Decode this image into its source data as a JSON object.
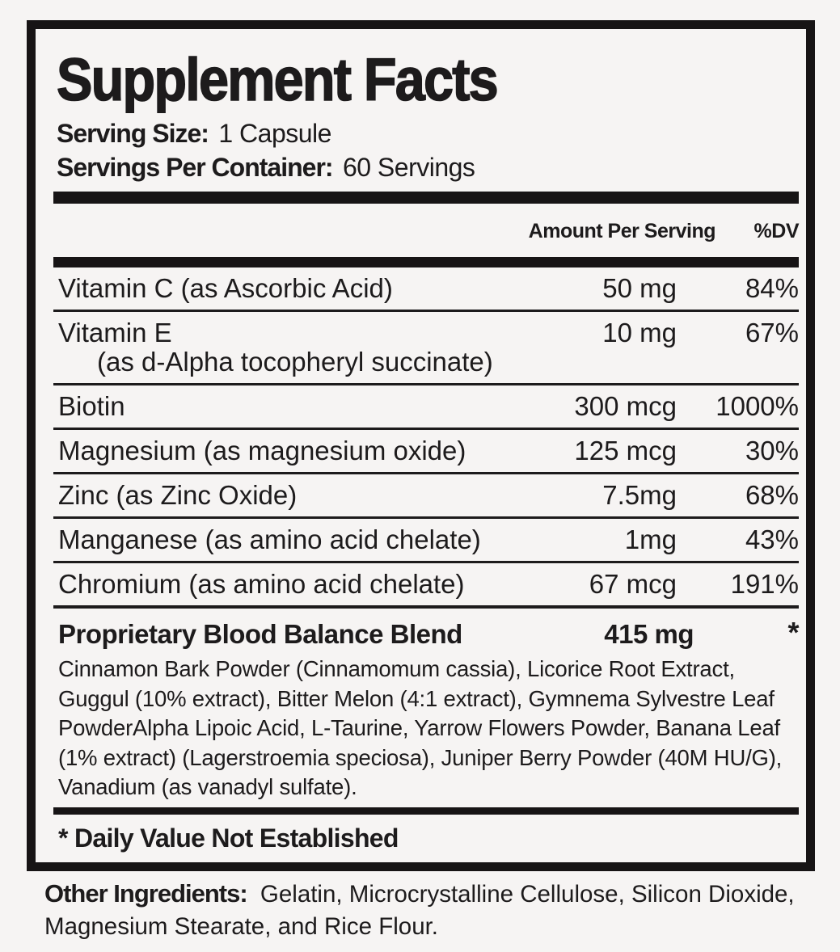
{
  "panel": {
    "title": "Supplement Facts",
    "serving_size_label": "Serving Size:",
    "serving_size_value": "1 Capsule",
    "servings_per_container_label": "Servings Per Container:",
    "servings_per_container_value": "60 Servings",
    "columns": {
      "amount": "Amount Per Serving",
      "dv": "%DV"
    }
  },
  "nutrients": [
    {
      "name": "Vitamin C (as Ascorbic Acid)",
      "amount": "50 mg",
      "dv": "84%"
    },
    {
      "name": "Vitamin E",
      "sub": "(as d-Alpha tocopheryl succinate)",
      "amount": "10 mg",
      "dv": "67%"
    },
    {
      "name": "Biotin",
      "amount": "300 mcg",
      "dv": "1000%"
    },
    {
      "name": "Magnesium (as magnesium oxide)",
      "amount": "125 mcg",
      "dv": "30%"
    },
    {
      "name": "Zinc (as Zinc Oxide)",
      "amount": "7.5mg",
      "dv": "68%"
    },
    {
      "name": "Manganese (as amino acid chelate)",
      "amount": "1mg",
      "dv": "43%"
    },
    {
      "name": "Chromium (as amino acid chelate)",
      "amount": "67 mcg",
      "dv": "191%"
    }
  ],
  "blend": {
    "name": "Proprietary Blood Balance Blend",
    "amount": "415 mg",
    "dv": "*",
    "ingredients": "Cinnamon Bark Powder (Cinnamomum cassia), Licorice Root Extract, Guggul (10% extract), Bitter Melon (4:1 extract), Gymnema Sylvestre Leaf PowderAlpha Lipoic Acid, L-Taurine, Yarrow Flowers Powder, Banana Leaf (1% extract) (Lagerstroemia speciosa), Juniper Berry Powder (40M HU/G), Vanadium (as vanadyl sulfate)."
  },
  "footnote": "* Daily Value Not Established",
  "other_ingredients": {
    "label": "Other Ingredients:",
    "value": "Gelatin, Microcrystalline Cellulose, Silicon Dioxide, Magnesium Stearate, and Rice Flour."
  },
  "colors": {
    "text": "#1d1b1c",
    "background": "#f6f4f3",
    "border": "#171415"
  }
}
